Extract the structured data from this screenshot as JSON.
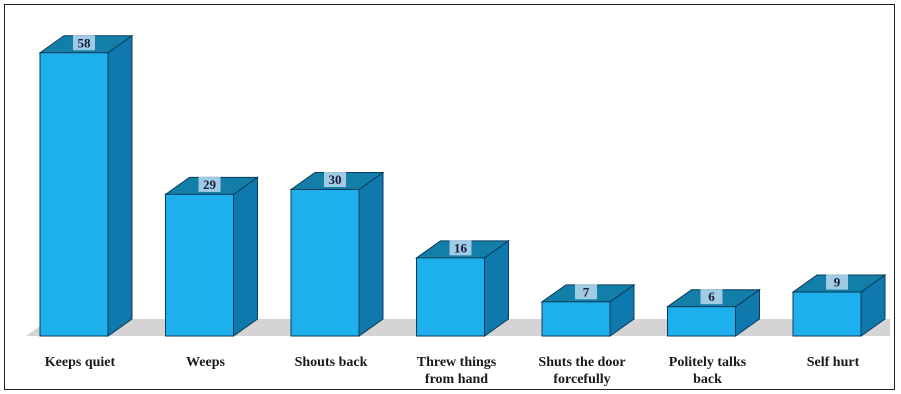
{
  "chart_data": {
    "type": "bar",
    "style": "3d-column",
    "categories": [
      [
        "Keeps quiet"
      ],
      [
        "Weeps"
      ],
      [
        "Shouts back"
      ],
      [
        "Threw things",
        "from hand"
      ],
      [
        "Shuts the door",
        "forcefully"
      ],
      [
        "Politely talks",
        "back"
      ],
      [
        "Self hurt"
      ]
    ],
    "values": [
      58,
      29,
      30,
      16,
      7,
      6,
      9
    ],
    "value_labels": [
      "58",
      "29",
      "30",
      "16",
      "7",
      "6",
      "9"
    ],
    "title": "",
    "xlabel": "",
    "ylabel": "",
    "ylim": [
      0,
      60
    ],
    "grid": false,
    "legend": "none",
    "colors": {
      "front": "#1eb0ec",
      "side": "#0f78ad",
      "top": "#137ea8",
      "edge": "#0a3d5c",
      "floor": "#d4d4d4",
      "label_box": "#b9d9ee"
    }
  }
}
